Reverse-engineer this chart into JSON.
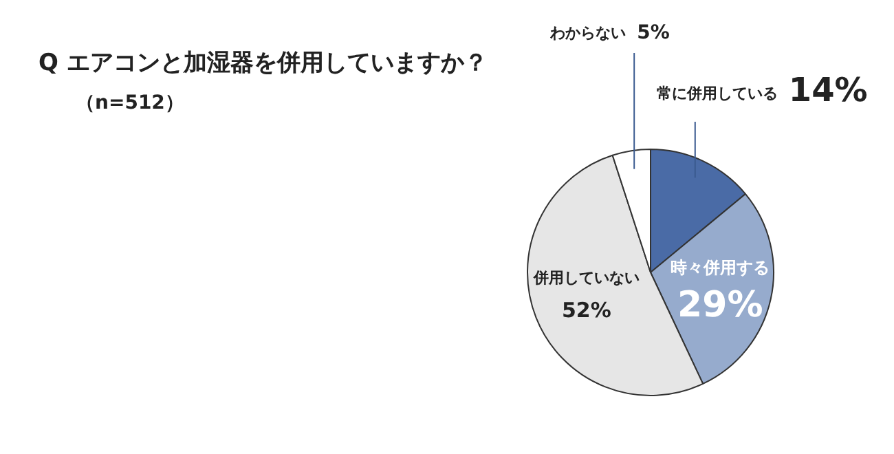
{
  "chart_data": {
    "type": "pie",
    "title": "Q エアコンと加湿器を併用していますか？",
    "subtitle": "（n=512）",
    "categories": [
      "常に併用している",
      "時々併用する",
      "併用していない",
      "わからない"
    ],
    "values": [
      14,
      29,
      52,
      5
    ],
    "colors": [
      "#4a6ba6",
      "#96abcd",
      "#e6e6e6",
      "#ffffff"
    ],
    "value_labels": [
      "14%",
      "29%",
      "52%",
      "5%"
    ],
    "legend": false
  }
}
